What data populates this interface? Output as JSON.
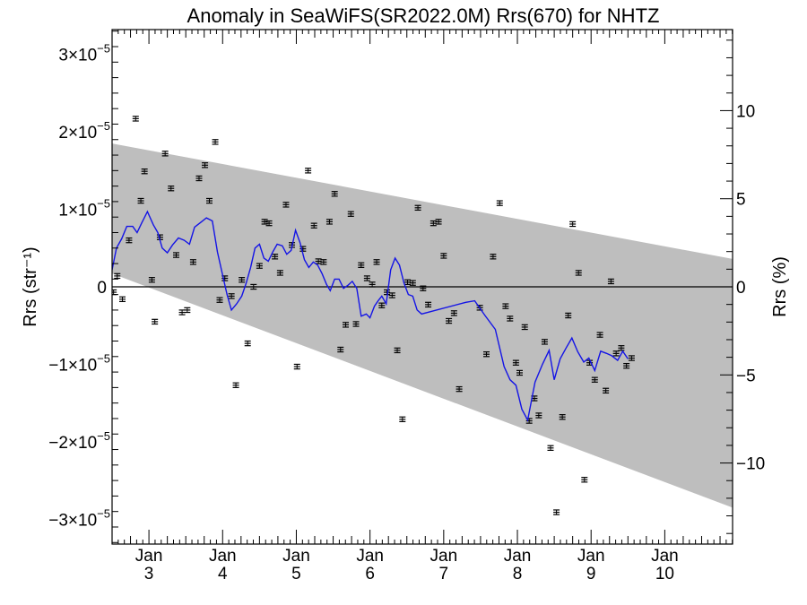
{
  "chart_data": {
    "type": "scatter",
    "title": "Anomaly in SeaWiFS(SR2022.0M) Rrs(670) for NHTZ",
    "ylabel_left": "Rrs (str⁻¹)",
    "ylabel_right": "Rrs (%)",
    "xlabel": "",
    "x_unit": "years since 2000 (Jan 3 = 3.0)",
    "xlim": [
      2.5,
      10.92
    ],
    "ylim_left": [
      -3.32e-05,
      3.32e-05
    ],
    "ylim_right": [
      -14.6,
      14.6
    ],
    "x_tick_labels": [
      {
        "month": "Jan",
        "year": "3",
        "x": 3
      },
      {
        "month": "Jan",
        "year": "4",
        "x": 4
      },
      {
        "month": "Jan",
        "year": "5",
        "x": 5
      },
      {
        "month": "Jan",
        "year": "6",
        "x": 6
      },
      {
        "month": "Jan",
        "year": "7",
        "x": 7
      },
      {
        "month": "Jan",
        "year": "8",
        "x": 8
      },
      {
        "month": "Jan",
        "year": "9",
        "x": 9
      },
      {
        "month": "Jan",
        "year": "10",
        "x": 10
      }
    ],
    "y_left_ticks": [
      {
        "value": 3e-05,
        "mantissa": "3×10",
        "exp": "−5"
      },
      {
        "value": 2e-05,
        "mantissa": "2×10",
        "exp": "−5"
      },
      {
        "value": 1e-05,
        "mantissa": "1×10",
        "exp": "−5"
      },
      {
        "value": 0,
        "mantissa": "0",
        "exp": ""
      },
      {
        "value": -1e-05,
        "mantissa": "−1×10",
        "exp": "−5"
      },
      {
        "value": -2e-05,
        "mantissa": "−2×10",
        "exp": "−5"
      },
      {
        "value": -3e-05,
        "mantissa": "−3×10",
        "exp": "−5"
      }
    ],
    "y_right_ticks": [
      {
        "value": 10,
        "label": "10"
      },
      {
        "value": 5,
        "label": "5"
      },
      {
        "value": 0,
        "label": "0"
      },
      {
        "value": -5,
        "label": "−5"
      },
      {
        "value": -10,
        "label": "−10"
      }
    ],
    "band": {
      "color": "#bebebe",
      "upper": [
        [
          2.5,
          1.85e-05
        ],
        [
          10.92,
          3.6e-06
        ]
      ],
      "lower": [
        [
          2.5,
          1.7e-06
        ],
        [
          10.92,
          -2.85e-05
        ]
      ]
    },
    "zero_line": 0,
    "series": [
      {
        "kind": "points_with_errorbars",
        "color": "#000000",
        "error": 3e-07,
        "points": [
          [
            2.52,
            -7e-07
          ],
          [
            2.57,
            1.4e-06
          ],
          [
            2.64,
            -1.6e-06
          ],
          [
            2.73,
            6e-06
          ],
          [
            2.82,
            2.17e-05
          ],
          [
            2.89,
            1.11e-05
          ],
          [
            2.94,
            1.49e-05
          ],
          [
            3.04,
            9e-07
          ],
          [
            3.08,
            -4.5e-06
          ],
          [
            3.15,
            6.4e-06
          ],
          [
            3.22,
            1.72e-05
          ],
          [
            3.3,
            1.27e-05
          ],
          [
            3.37,
            4.1e-06
          ],
          [
            3.45,
            -3.3e-06
          ],
          [
            3.52,
            -3e-06
          ],
          [
            3.6,
            3.2e-06
          ],
          [
            3.68,
            1.4e-05
          ],
          [
            3.76,
            1.57e-05
          ],
          [
            3.82,
            1.11e-05
          ],
          [
            3.9,
            1.87e-05
          ],
          [
            3.96,
            -1.7e-06
          ],
          [
            4.03,
            1.1e-06
          ],
          [
            4.12,
            -1.2e-06
          ],
          [
            4.18,
            -1.27e-05
          ],
          [
            4.26,
            9e-07
          ],
          [
            4.34,
            -7.3e-06
          ],
          [
            4.42,
            0.0
          ],
          [
            4.5,
            2.7e-06
          ],
          [
            4.57,
            8.4e-06
          ],
          [
            4.63,
            8.2e-06
          ],
          [
            4.71,
            3.9e-06
          ],
          [
            4.78,
            1.8e-06
          ],
          [
            4.86,
            1.06e-05
          ],
          [
            4.94,
            5.4e-06
          ],
          [
            5.01,
            -1.03e-05
          ],
          [
            5.09,
            4.9e-06
          ],
          [
            5.16,
            1.5e-05
          ],
          [
            5.24,
            7.9e-06
          ],
          [
            5.3,
            3.3e-06
          ],
          [
            5.37,
            3.2e-06
          ],
          [
            5.45,
            8.4e-06
          ],
          [
            5.52,
            1.2e-05
          ],
          [
            5.6,
            -8.1e-06
          ],
          [
            5.67,
            -4.9e-06
          ],
          [
            5.74,
            9.4e-06
          ],
          [
            5.81,
            -4.8e-06
          ],
          [
            5.88,
            2.8e-06
          ],
          [
            5.96,
            1.1e-06
          ],
          [
            6.03,
            3e-07
          ],
          [
            6.09,
            3.2e-06
          ],
          [
            6.16,
            -2.4e-06
          ],
          [
            6.23,
            -7e-07
          ],
          [
            6.3,
            -1.1e-06
          ],
          [
            6.37,
            -8.2e-06
          ],
          [
            6.44,
            -1.71e-05
          ],
          [
            6.51,
            6e-07
          ],
          [
            6.58,
            5e-07
          ],
          [
            6.65,
            1.02e-05
          ],
          [
            6.72,
            -2e-07
          ],
          [
            6.79,
            -2.3e-06
          ],
          [
            6.86,
            8.2e-06
          ],
          [
            6.93,
            8.4e-06
          ],
          [
            7.0,
            4e-06
          ],
          [
            7.07,
            -4.4e-06
          ],
          [
            7.14,
            -3.4e-06
          ],
          [
            7.21,
            -1.32e-05
          ],
          [
            7.49,
            -2.7e-06
          ],
          [
            7.58,
            -8.7e-06
          ],
          [
            7.67,
            3.9e-06
          ],
          [
            7.76,
            1.08e-05
          ],
          [
            7.84,
            -2.5e-06
          ],
          [
            7.9,
            -4.1e-06
          ],
          [
            7.98,
            -9.8e-06
          ],
          [
            8.03,
            -1.11e-05
          ],
          [
            8.1,
            -5.2e-06
          ],
          [
            8.16,
            -1.73e-05
          ],
          [
            8.23,
            -1.44e-05
          ],
          [
            8.29,
            -1.66e-05
          ],
          [
            8.37,
            -7.1e-06
          ],
          [
            8.45,
            -2.08e-05
          ],
          [
            8.53,
            -2.91e-05
          ],
          [
            8.61,
            -1.68e-05
          ],
          [
            8.69,
            -3.7e-06
          ],
          [
            8.75,
            8.1e-06
          ],
          [
            8.83,
            1.8e-06
          ],
          [
            8.91,
            -2.49e-05
          ],
          [
            8.98,
            -9.8e-06
          ],
          [
            9.05,
            -1.2e-05
          ],
          [
            9.12,
            -6.2e-06
          ],
          [
            9.2,
            -1.34e-05
          ],
          [
            9.27,
            7e-07
          ],
          [
            9.34,
            -8.6e-06
          ],
          [
            9.41,
            -7.9e-06
          ],
          [
            9.48,
            -1.02e-05
          ],
          [
            9.55,
            -9.2e-06
          ]
        ]
      },
      {
        "kind": "line",
        "color": "#1414e6",
        "points": [
          [
            2.5,
            2.2e-06
          ],
          [
            2.56,
            5e-06
          ],
          [
            2.63,
            6.2e-06
          ],
          [
            2.7,
            7.8e-06
          ],
          [
            2.78,
            7.8e-06
          ],
          [
            2.84,
            7e-06
          ],
          [
            2.9,
            8.2e-06
          ],
          [
            2.98,
            9.7e-06
          ],
          [
            3.06,
            8e-06
          ],
          [
            3.12,
            7e-06
          ],
          [
            3.18,
            5e-06
          ],
          [
            3.25,
            4.4e-06
          ],
          [
            3.32,
            5.4e-06
          ],
          [
            3.4,
            6.3e-06
          ],
          [
            3.48,
            6e-06
          ],
          [
            3.55,
            5.5e-06
          ],
          [
            3.62,
            7.7e-06
          ],
          [
            3.7,
            8.3e-06
          ],
          [
            3.78,
            8.9e-06
          ],
          [
            3.86,
            8.5e-06
          ],
          [
            3.93,
            4.5e-06
          ],
          [
            4.0,
            1.5e-06
          ],
          [
            4.06,
            -1e-06
          ],
          [
            4.12,
            -3e-06
          ],
          [
            4.19,
            -2.2e-06
          ],
          [
            4.26,
            -1.2e-06
          ],
          [
            4.32,
            5e-07
          ],
          [
            4.38,
            2.5e-06
          ],
          [
            4.44,
            5e-06
          ],
          [
            4.5,
            5.5e-06
          ],
          [
            4.56,
            3.7e-06
          ],
          [
            4.62,
            3.3e-06
          ],
          [
            4.68,
            4.5e-06
          ],
          [
            4.74,
            5.5e-06
          ],
          [
            4.81,
            5.3e-06
          ],
          [
            4.87,
            4.2e-06
          ],
          [
            4.93,
            4.7e-06
          ],
          [
            4.99,
            7.3e-06
          ],
          [
            5.05,
            5.7e-06
          ],
          [
            5.11,
            3.5e-06
          ],
          [
            5.17,
            2.5e-06
          ],
          [
            5.23,
            3.2e-06
          ],
          [
            5.29,
            2.8e-06
          ],
          [
            5.35,
            1.7e-06
          ],
          [
            5.41,
            3e-07
          ],
          [
            5.46,
            -5e-07
          ],
          [
            5.52,
            1e-06
          ],
          [
            5.58,
            1e-06
          ],
          [
            5.64,
            -2e-07
          ],
          [
            5.7,
            2e-07
          ],
          [
            5.76,
            7e-07
          ],
          [
            5.82,
            -2e-07
          ],
          [
            5.88,
            -3.8e-06
          ],
          [
            5.95,
            -3.5e-06
          ],
          [
            6.0,
            -4e-06
          ],
          [
            6.06,
            -2.5e-06
          ],
          [
            6.11,
            -1.8e-06
          ],
          [
            6.16,
            -1.2e-06
          ],
          [
            6.22,
            -2.2e-06
          ],
          [
            6.28,
            2.2e-06
          ],
          [
            6.34,
            3.7e-06
          ],
          [
            6.4,
            2.8e-06
          ],
          [
            6.46,
            5e-07
          ],
          [
            6.52,
            -1e-06
          ],
          [
            6.58,
            -1.2e-06
          ],
          [
            6.64,
            -3e-06
          ],
          [
            6.7,
            -3.5e-06
          ],
          [
            7.3,
            -2e-06
          ],
          [
            7.42,
            -1.8e-06
          ],
          [
            7.56,
            -3.7e-06
          ],
          [
            7.7,
            -5.5e-06
          ],
          [
            7.82,
            -1.03e-05
          ],
          [
            7.9,
            -1.2e-05
          ],
          [
            7.98,
            -1.27e-05
          ],
          [
            8.06,
            -1.58e-05
          ],
          [
            8.14,
            -1.72e-05
          ],
          [
            8.24,
            -1.23e-05
          ],
          [
            8.34,
            -1e-05
          ],
          [
            8.43,
            -8.2e-06
          ],
          [
            8.5,
            -1.2e-05
          ],
          [
            8.58,
            -9.3e-06
          ],
          [
            8.66,
            -7.9e-06
          ],
          [
            8.74,
            -6.6e-06
          ],
          [
            8.82,
            -8.4e-06
          ],
          [
            8.9,
            -9.7e-06
          ],
          [
            8.97,
            -9.2e-06
          ],
          [
            9.05,
            -1.08e-05
          ],
          [
            9.13,
            -8.3e-06
          ],
          [
            9.21,
            -8.6e-06
          ],
          [
            9.28,
            -8.9e-06
          ],
          [
            9.36,
            -9.5e-06
          ],
          [
            9.43,
            -8.3e-06
          ],
          [
            9.5,
            -9.3e-06
          ]
        ]
      }
    ]
  }
}
